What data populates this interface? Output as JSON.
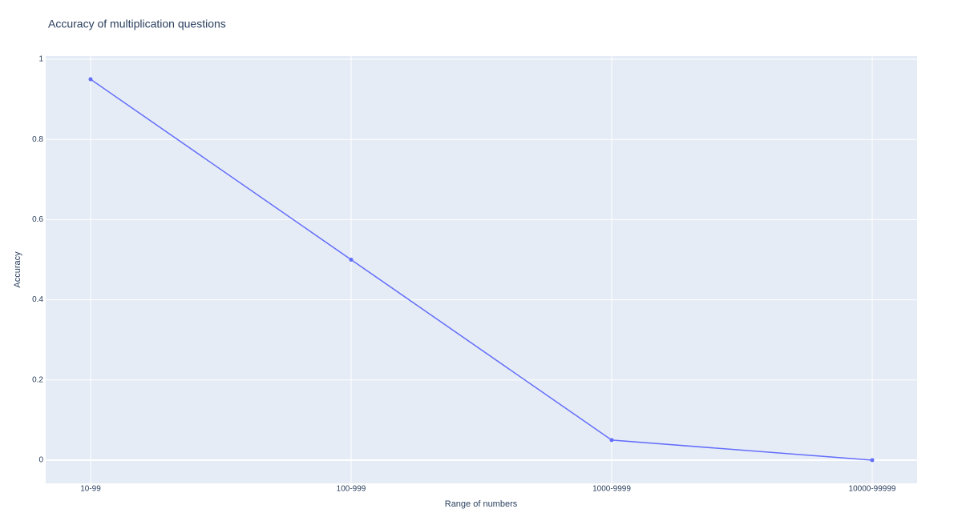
{
  "chart_data": {
    "type": "line",
    "title": "Accuracy of multiplication questions",
    "x_label": "Range of numbers",
    "y_label": "Accuracy",
    "categories": [
      "10-99",
      "100-999",
      "1000-9999",
      "10000-99999"
    ],
    "values": [
      0.95,
      0.5,
      0.05,
      0
    ],
    "color": "#636efa",
    "ylim": [
      -0.058,
      1.008
    ],
    "yticks": [
      0,
      0.2,
      0.4,
      0.6,
      0.8,
      1
    ],
    "grid": true
  }
}
